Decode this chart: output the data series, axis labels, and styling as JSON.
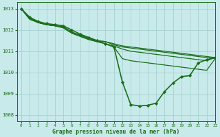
{
  "title": "Graphe pression niveau de la mer (hPa)",
  "background_color": "#c8eaea",
  "grid_color": "#a8d0d0",
  "line_color": "#1a6e1a",
  "marker_color": "#1a6e1a",
  "xlim": [
    -0.5,
    23
  ],
  "ylim": [
    1007.7,
    1013.3
  ],
  "yticks": [
    1008,
    1009,
    1010,
    1011,
    1012,
    1013
  ],
  "xticks": [
    0,
    1,
    2,
    3,
    4,
    5,
    6,
    7,
    8,
    9,
    10,
    11,
    12,
    13,
    14,
    15,
    16,
    17,
    18,
    19,
    20,
    21,
    22,
    23
  ],
  "series": [
    {
      "x": [
        0,
        1,
        2,
        3,
        4,
        5,
        6,
        7,
        8,
        9,
        10,
        11,
        12,
        13,
        14,
        15,
        16,
        17,
        18,
        19,
        20,
        21,
        22,
        23
      ],
      "y": [
        1013.0,
        1012.6,
        1012.35,
        1012.25,
        1012.2,
        1012.15,
        1011.9,
        1011.75,
        1011.6,
        1011.5,
        1011.45,
        1011.35,
        1011.25,
        1011.2,
        1011.15,
        1011.1,
        1011.05,
        1011.0,
        1010.95,
        1010.9,
        1010.85,
        1010.8,
        1010.75,
        1010.7
      ],
      "marker": false,
      "lw": 0.9
    },
    {
      "x": [
        0,
        1,
        2,
        3,
        4,
        5,
        6,
        7,
        8,
        9,
        10,
        11,
        12,
        13,
        14,
        15,
        16,
        17,
        18,
        19,
        20,
        21,
        22,
        23
      ],
      "y": [
        1013.0,
        1012.55,
        1012.35,
        1012.25,
        1012.2,
        1012.15,
        1011.9,
        1011.75,
        1011.6,
        1011.5,
        1011.45,
        1011.3,
        1011.2,
        1011.15,
        1011.1,
        1011.05,
        1011.0,
        1010.95,
        1010.9,
        1010.85,
        1010.8,
        1010.75,
        1010.7,
        1010.65
      ],
      "marker": false,
      "lw": 0.9
    },
    {
      "x": [
        0,
        1,
        2,
        3,
        4,
        5,
        6,
        7,
        8,
        9,
        10,
        11,
        12,
        13,
        14,
        15,
        16,
        17,
        18,
        19,
        20,
        21,
        22,
        23
      ],
      "y": [
        1013.0,
        1012.5,
        1012.35,
        1012.25,
        1012.2,
        1012.1,
        1011.85,
        1011.7,
        1011.55,
        1011.45,
        1011.35,
        1011.25,
        1011.1,
        1011.0,
        1010.95,
        1010.9,
        1010.85,
        1010.8,
        1010.75,
        1010.7,
        1010.65,
        1010.6,
        1010.55,
        1010.7
      ],
      "marker": false,
      "lw": 0.9
    },
    {
      "x": [
        0,
        1,
        2,
        3,
        4,
        5,
        6,
        7,
        8,
        9,
        10,
        11,
        12,
        13,
        14,
        15,
        16,
        17,
        18,
        19,
        20,
        21,
        22,
        23
      ],
      "y": [
        1013.0,
        1012.55,
        1012.35,
        1012.25,
        1012.2,
        1012.1,
        1011.85,
        1011.7,
        1011.55,
        1011.45,
        1011.35,
        1011.2,
        1010.65,
        1010.55,
        1010.5,
        1010.45,
        1010.4,
        1010.35,
        1010.3,
        1010.25,
        1010.2,
        1010.15,
        1010.1,
        1010.65
      ],
      "marker": false,
      "lw": 0.9
    },
    {
      "x": [
        0,
        1,
        2,
        3,
        4,
        5,
        6,
        7,
        8,
        9,
        10,
        11,
        12,
        13,
        14,
        15,
        16,
        17,
        18,
        19,
        20,
        21,
        22,
        23
      ],
      "y": [
        1013.0,
        1012.6,
        1012.4,
        1012.3,
        1012.25,
        1012.2,
        1012.0,
        1011.8,
        1011.65,
        1011.5,
        1011.35,
        1011.2,
        1009.55,
        1008.48,
        1008.42,
        1008.45,
        1008.55,
        1009.1,
        1009.5,
        1009.8,
        1009.85,
        1010.45,
        1010.6,
        1010.7
      ],
      "marker": true,
      "lw": 1.2
    }
  ]
}
